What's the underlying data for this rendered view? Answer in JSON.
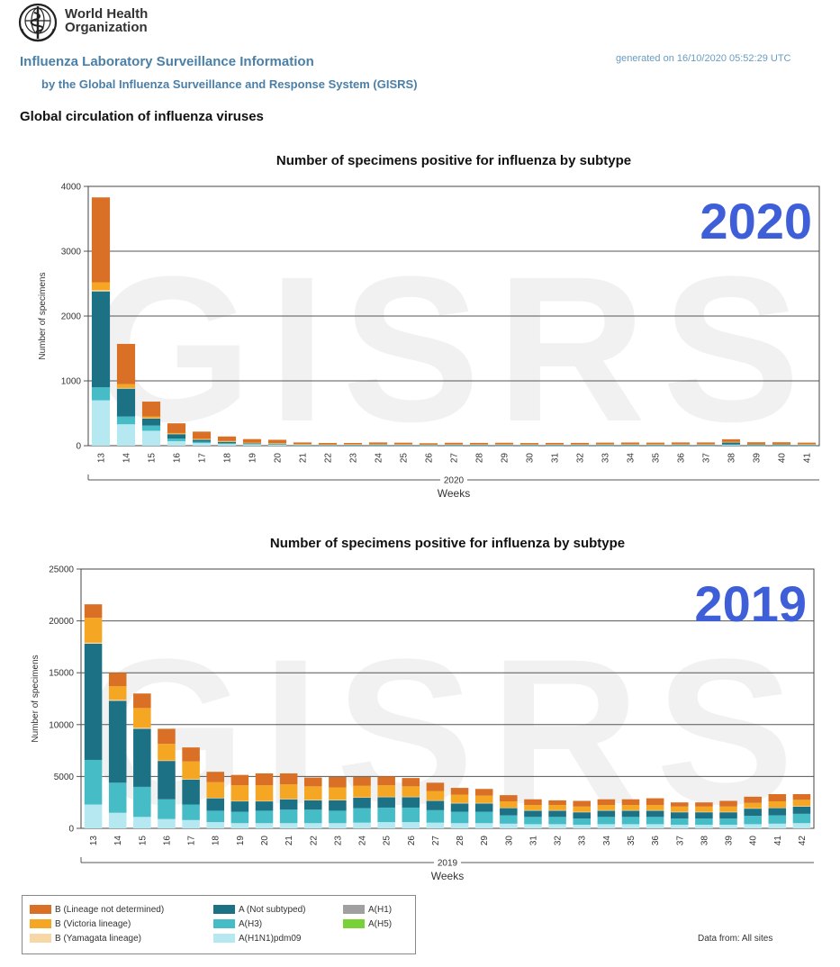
{
  "org": {
    "name_line1": "World Health",
    "name_line2": "Organization"
  },
  "header": {
    "title": "Influenza Laboratory Surveillance Information",
    "subtitle": "by the Global Influenza Surveillance and Response System (GISRS)",
    "generated": "generated on 16/10/2020 05:52:29 UTC"
  },
  "section_heading": "Global circulation of influenza viruses",
  "colors": {
    "b_lineage_nd": "#d97026",
    "b_victoria": "#f5a623",
    "b_yamagata": "#f7d7a6",
    "a_not_subtyped": "#1d7185",
    "a_h3": "#46bcc6",
    "a_h1n1pdm09": "#b6e8f2",
    "a_h1": "#a0a0a0",
    "a_h5": "#78d136",
    "annotation": "#3f5fd9"
  },
  "legend": {
    "items": [
      {
        "key": "b_lineage_nd",
        "label": "B (Lineage not determined)"
      },
      {
        "key": "b_victoria",
        "label": "B (Victoria lineage)"
      },
      {
        "key": "b_yamagata",
        "label": "B (Yamagata lineage)"
      },
      {
        "key": "a_not_subtyped",
        "label": "A (Not subtyped)"
      },
      {
        "key": "a_h3",
        "label": "A(H3)"
      },
      {
        "key": "a_h1n1pdm09",
        "label": "A(H1N1)pdm09"
      },
      {
        "key": "a_h1",
        "label": "A(H1)"
      },
      {
        "key": "a_h5",
        "label": "A(H5)"
      }
    ],
    "data_from": "Data from: All sites"
  },
  "chart_data": [
    {
      "type": "bar",
      "stacked": true,
      "title": "Number of specimens positive for influenza by subtype",
      "annotation": "2020",
      "watermark": "GISRS",
      "xlabel": "Weeks",
      "year_label": "2020",
      "ylabel": "Number of specimens",
      "ylim": [
        0,
        4000
      ],
      "yticks": [
        0,
        1000,
        2000,
        3000,
        4000
      ],
      "grid": true,
      "categories": [
        "13",
        "14",
        "15",
        "16",
        "17",
        "18",
        "19",
        "20",
        "21",
        "22",
        "23",
        "24",
        "25",
        "26",
        "27",
        "28",
        "29",
        "30",
        "31",
        "32",
        "33",
        "34",
        "35",
        "36",
        "37",
        "38",
        "39",
        "40",
        "41"
      ],
      "series": [
        {
          "key": "a_h1n1pdm09",
          "values": [
            700,
            330,
            230,
            70,
            40,
            25,
            18,
            15,
            8,
            6,
            6,
            6,
            6,
            5,
            5,
            5,
            5,
            5,
            5,
            5,
            5,
            5,
            5,
            5,
            5,
            10,
            5,
            5,
            5
          ]
        },
        {
          "key": "a_h3",
          "values": [
            200,
            120,
            80,
            40,
            20,
            12,
            8,
            8,
            5,
            4,
            4,
            4,
            4,
            4,
            4,
            4,
            4,
            4,
            4,
            4,
            4,
            4,
            4,
            4,
            4,
            8,
            4,
            4,
            4
          ]
        },
        {
          "key": "a_not_subtyped",
          "values": [
            1480,
            430,
            110,
            70,
            35,
            25,
            15,
            12,
            8,
            8,
            10,
            12,
            10,
            8,
            10,
            10,
            12,
            10,
            10,
            10,
            12,
            12,
            12,
            12,
            12,
            35,
            15,
            15,
            12
          ]
        },
        {
          "key": "b_yamagata",
          "values": [
            20,
            10,
            5,
            3,
            2,
            2,
            1,
            1,
            1,
            1,
            1,
            1,
            1,
            1,
            1,
            1,
            1,
            1,
            1,
            1,
            1,
            1,
            1,
            1,
            1,
            1,
            1,
            1,
            1
          ]
        },
        {
          "key": "b_victoria",
          "values": [
            120,
            60,
            25,
            12,
            10,
            8,
            5,
            5,
            3,
            3,
            3,
            3,
            3,
            3,
            3,
            3,
            3,
            3,
            3,
            3,
            3,
            3,
            3,
            3,
            3,
            5,
            3,
            3,
            3
          ]
        },
        {
          "key": "b_lineage_nd",
          "values": [
            1310,
            620,
            230,
            150,
            110,
            70,
            55,
            50,
            25,
            20,
            18,
            24,
            22,
            17,
            22,
            20,
            20,
            18,
            20,
            20,
            22,
            24,
            22,
            25,
            25,
            40,
            25,
            25,
            22
          ]
        }
      ]
    },
    {
      "type": "bar",
      "stacked": true,
      "title": "Number of specimens positive for influenza by subtype",
      "annotation": "2019",
      "watermark": "GISRS",
      "xlabel": "Weeks",
      "year_label": "2019",
      "ylabel": "Number of specimens",
      "ylim": [
        0,
        25000
      ],
      "yticks": [
        0,
        5000,
        10000,
        15000,
        20000,
        25000
      ],
      "grid": true,
      "categories": [
        "13",
        "14",
        "15",
        "16",
        "17",
        "18",
        "19",
        "20",
        "21",
        "22",
        "23",
        "24",
        "25",
        "26",
        "27",
        "28",
        "29",
        "30",
        "31",
        "32",
        "33",
        "34",
        "35",
        "36",
        "37",
        "38",
        "39",
        "40",
        "41",
        "42"
      ],
      "series": [
        {
          "key": "a_h1n1pdm09",
          "values": [
            2300,
            1500,
            1100,
            900,
            800,
            600,
            500,
            500,
            500,
            500,
            500,
            550,
            600,
            600,
            550,
            500,
            500,
            450,
            400,
            400,
            350,
            400,
            400,
            400,
            350,
            350,
            350,
            400,
            450,
            500
          ]
        },
        {
          "key": "a_h3",
          "values": [
            4300,
            2900,
            2900,
            1900,
            1500,
            1100,
            1100,
            1200,
            1300,
            1300,
            1200,
            1400,
            1400,
            1400,
            1200,
            1100,
            1100,
            800,
            700,
            700,
            600,
            700,
            700,
            700,
            600,
            600,
            600,
            800,
            800,
            900
          ]
        },
        {
          "key": "a_not_subtyped",
          "values": [
            11200,
            7900,
            5600,
            3700,
            2400,
            1200,
            1000,
            900,
            1000,
            900,
            1000,
            1000,
            1000,
            1000,
            900,
            800,
            800,
            700,
            600,
            600,
            600,
            600,
            600,
            600,
            600,
            600,
            600,
            700,
            700,
            700
          ]
        },
        {
          "key": "b_yamagata",
          "values": [
            100,
            100,
            100,
            50,
            50,
            50,
            50,
            50,
            50,
            50,
            50,
            50,
            50,
            50,
            50,
            50,
            50,
            50,
            50,
            50,
            50,
            50,
            50,
            50,
            50,
            50,
            50,
            50,
            50,
            50
          ]
        },
        {
          "key": "b_victoria",
          "values": [
            2400,
            1300,
            1900,
            1600,
            1700,
            1500,
            1500,
            1500,
            1400,
            1300,
            1200,
            1100,
            1100,
            1000,
            900,
            800,
            700,
            600,
            500,
            500,
            500,
            500,
            500,
            500,
            500,
            500,
            500,
            500,
            600,
            600
          ]
        },
        {
          "key": "b_lineage_nd",
          "values": [
            1300,
            1300,
            1400,
            1450,
            1350,
            1000,
            1000,
            1150,
            1050,
            850,
            1000,
            850,
            850,
            800,
            800,
            650,
            650,
            600,
            550,
            450,
            550,
            550,
            550,
            650,
            400,
            400,
            550,
            600,
            700,
            550
          ]
        }
      ]
    }
  ]
}
